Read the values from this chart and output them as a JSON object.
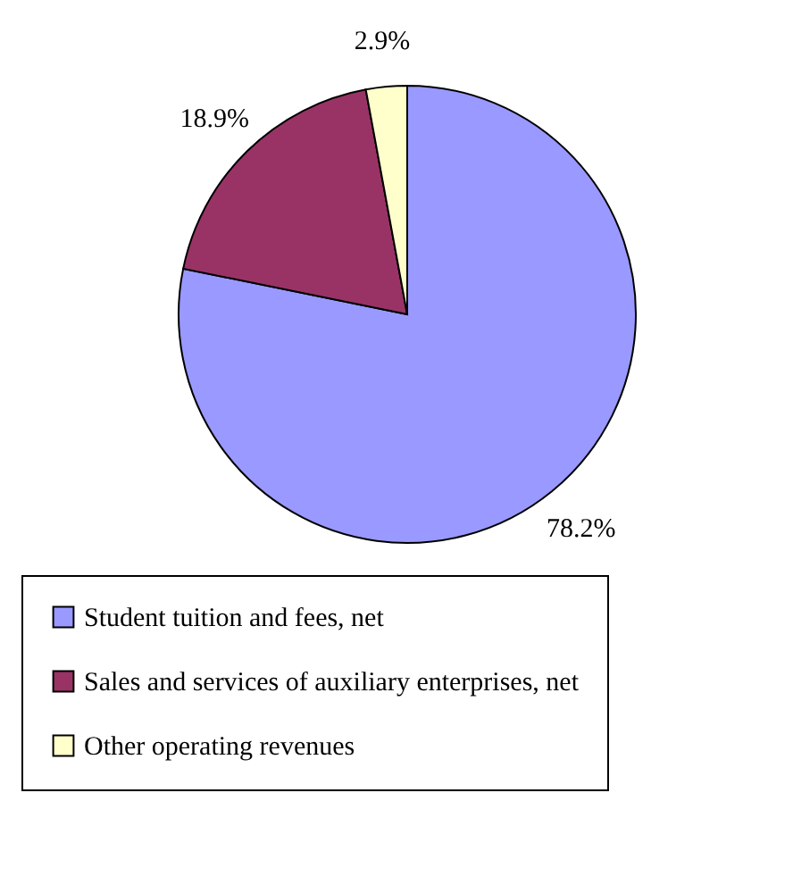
{
  "chart_data": {
    "type": "pie",
    "categories": [
      "Student tuition and fees, net",
      "Sales and services of auxiliary enterprises, net",
      "Other operating revenues"
    ],
    "values": [
      78.2,
      18.9,
      2.9
    ],
    "colors": [
      "#9999ff",
      "#993366",
      "#ffffcc"
    ],
    "value_labels": [
      "78.2%",
      "18.9%",
      "2.9%"
    ],
    "legend": "bottom"
  }
}
